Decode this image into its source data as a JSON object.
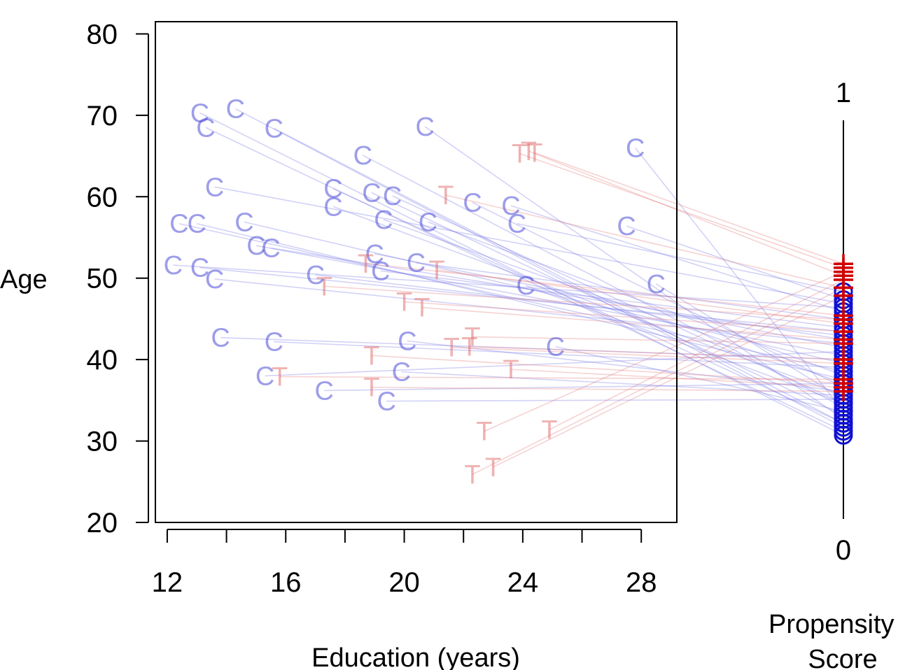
{
  "chart_data": {
    "type": "scatter",
    "title": "",
    "xlabel": "Education (years)",
    "ylabel": "Age",
    "xlim": [
      11.6,
      29.2
    ],
    "ylim": [
      20,
      81.5
    ],
    "x_ticks": [
      12,
      14,
      16,
      18,
      20,
      22,
      24,
      26,
      28
    ],
    "x_tick_labels": [
      "12",
      "16",
      "20",
      "24",
      "28"
    ],
    "y_ticks": [
      20,
      30,
      40,
      50,
      60,
      70,
      80
    ],
    "y_tick_labels": [
      "20",
      "30",
      "40",
      "50",
      "60",
      "70",
      "80"
    ],
    "grid": false,
    "legend": "none",
    "colors": {
      "control": "#3b3bd6",
      "control_line": "#7f7fe8",
      "treated": "#e06666",
      "treated_line": "#e57f7f",
      "ps_control": "#1010d0",
      "ps_treated": "#d00000"
    },
    "propensity_axis": {
      "label_lines": [
        "Propensity",
        "Score"
      ],
      "top_label": "1",
      "bottom_label": "0"
    },
    "series": [
      {
        "group": "control",
        "letter": "C",
        "points": [
          {
            "x": 13.1,
            "y": 70.3,
            "ps": 0.21
          },
          {
            "x": 14.3,
            "y": 70.8,
            "ps": 0.23
          },
          {
            "x": 13.3,
            "y": 68.5,
            "ps": 0.22
          },
          {
            "x": 15.6,
            "y": 68.4,
            "ps": 0.24
          },
          {
            "x": 20.7,
            "y": 68.6,
            "ps": 0.25
          },
          {
            "x": 27.8,
            "y": 66.0,
            "ps": 0.27
          },
          {
            "x": 18.6,
            "y": 65.1,
            "ps": 0.28
          },
          {
            "x": 13.6,
            "y": 61.2,
            "ps": 0.54
          },
          {
            "x": 17.6,
            "y": 61.0,
            "ps": 0.24
          },
          {
            "x": 18.9,
            "y": 60.5,
            "ps": 0.26
          },
          {
            "x": 19.6,
            "y": 60.1,
            "ps": 0.29
          },
          {
            "x": 17.6,
            "y": 58.8,
            "ps": 0.31
          },
          {
            "x": 22.3,
            "y": 59.3,
            "ps": 0.33
          },
          {
            "x": 23.6,
            "y": 58.9,
            "ps": 0.52
          },
          {
            "x": 19.3,
            "y": 57.2,
            "ps": 0.34
          },
          {
            "x": 20.8,
            "y": 56.9,
            "ps": 0.36
          },
          {
            "x": 23.8,
            "y": 56.7,
            "ps": 0.57
          },
          {
            "x": 27.5,
            "y": 56.4,
            "ps": 0.55
          },
          {
            "x": 12.4,
            "y": 56.7,
            "ps": 0.37
          },
          {
            "x": 13.0,
            "y": 56.7,
            "ps": 0.35
          },
          {
            "x": 14.6,
            "y": 56.9,
            "ps": 0.39
          },
          {
            "x": 15.0,
            "y": 54.0,
            "ps": 0.41
          },
          {
            "x": 15.5,
            "y": 53.7,
            "ps": 0.45
          },
          {
            "x": 19.0,
            "y": 53.0,
            "ps": 0.43
          },
          {
            "x": 12.2,
            "y": 51.6,
            "ps": 0.53
          },
          {
            "x": 13.1,
            "y": 51.3,
            "ps": 0.47
          },
          {
            "x": 13.6,
            "y": 49.9,
            "ps": 0.44
          },
          {
            "x": 17.0,
            "y": 50.4,
            "ps": 0.46
          },
          {
            "x": 19.2,
            "y": 50.9,
            "ps": 0.48
          },
          {
            "x": 20.4,
            "y": 51.9,
            "ps": 0.5
          },
          {
            "x": 24.1,
            "y": 49.1,
            "ps": 0.29
          },
          {
            "x": 28.5,
            "y": 49.3,
            "ps": 0.3
          },
          {
            "x": 13.8,
            "y": 42.7,
            "ps": 0.4
          },
          {
            "x": 15.6,
            "y": 42.2,
            "ps": 0.38
          },
          {
            "x": 20.1,
            "y": 42.3,
            "ps": 0.32
          },
          {
            "x": 25.1,
            "y": 41.6,
            "ps": 0.27
          },
          {
            "x": 15.3,
            "y": 38.0,
            "ps": 0.42
          },
          {
            "x": 17.3,
            "y": 36.2,
            "ps": 0.34
          },
          {
            "x": 19.9,
            "y": 38.5,
            "ps": 0.31
          },
          {
            "x": 19.4,
            "y": 34.9,
            "ps": 0.3
          }
        ]
      },
      {
        "group": "treated",
        "letter": "T",
        "points": [
          {
            "x": 23.9,
            "y": 65.3,
            "ps": 0.63
          },
          {
            "x": 24.2,
            "y": 65.6,
            "ps": 0.61
          },
          {
            "x": 24.4,
            "y": 65.4,
            "ps": 0.64
          },
          {
            "x": 21.4,
            "y": 60.2,
            "ps": 0.58
          },
          {
            "x": 18.7,
            "y": 51.8,
            "ps": 0.51
          },
          {
            "x": 21.1,
            "y": 51.0,
            "ps": 0.49
          },
          {
            "x": 17.3,
            "y": 49.0,
            "ps": 0.5
          },
          {
            "x": 20.0,
            "y": 47.1,
            "ps": 0.47
          },
          {
            "x": 20.6,
            "y": 46.4,
            "ps": 0.45
          },
          {
            "x": 22.3,
            "y": 42.8,
            "ps": 0.44
          },
          {
            "x": 22.2,
            "y": 41.6,
            "ps": 0.4
          },
          {
            "x": 21.6,
            "y": 41.5,
            "ps": 0.39
          },
          {
            "x": 18.9,
            "y": 40.5,
            "ps": 0.34
          },
          {
            "x": 23.6,
            "y": 38.8,
            "ps": 0.33
          },
          {
            "x": 15.8,
            "y": 37.9,
            "ps": 0.35
          },
          {
            "x": 18.9,
            "y": 36.6,
            "ps": 0.32
          },
          {
            "x": 22.7,
            "y": 31.2,
            "ps": 0.62
          },
          {
            "x": 24.9,
            "y": 31.4,
            "ps": 0.6
          },
          {
            "x": 22.3,
            "y": 25.9,
            "ps": 0.58
          },
          {
            "x": 23.0,
            "y": 26.8,
            "ps": 0.56
          }
        ]
      }
    ]
  }
}
